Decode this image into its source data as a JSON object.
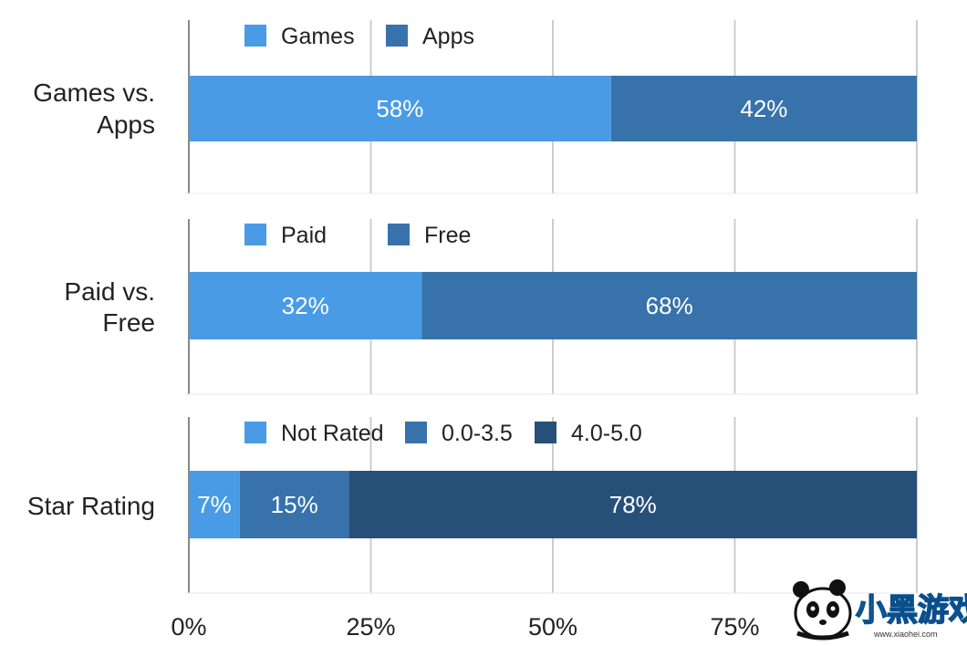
{
  "chart_data": {
    "type": "bar",
    "stacked": true,
    "orientation": "horizontal",
    "xlim": [
      0,
      100
    ],
    "x_ticks": [
      "0%",
      "25%",
      "50%",
      "75%"
    ],
    "grid": true,
    "legend_position": "top",
    "panels": [
      {
        "label": "Games vs. Apps",
        "series": [
          {
            "name": "Games",
            "value": 58,
            "label": "58%",
            "color": "#4a9be5"
          },
          {
            "name": "Apps",
            "value": 42,
            "label": "42%",
            "color": "#3872aa"
          }
        ]
      },
      {
        "label": "Paid vs. Free",
        "series": [
          {
            "name": "Paid",
            "value": 32,
            "label": "32%",
            "color": "#4a9be5"
          },
          {
            "name": "Free",
            "value": 68,
            "label": "68%",
            "color": "#3872aa"
          }
        ]
      },
      {
        "label": "Star Rating",
        "series": [
          {
            "name": "Not Rated",
            "value": 7,
            "label": "7%",
            "color": "#4a9be5"
          },
          {
            "name": "0.0-3.5",
            "value": 15,
            "label": "15%",
            "color": "#3872aa"
          },
          {
            "name": "4.0-5.0",
            "value": 78,
            "label": "78%",
            "color": "#275079"
          }
        ]
      }
    ]
  },
  "watermark": {
    "text": "小黑游戏",
    "url_text": "www.xiaohei.com",
    "icon": "panda-logo-icon"
  }
}
